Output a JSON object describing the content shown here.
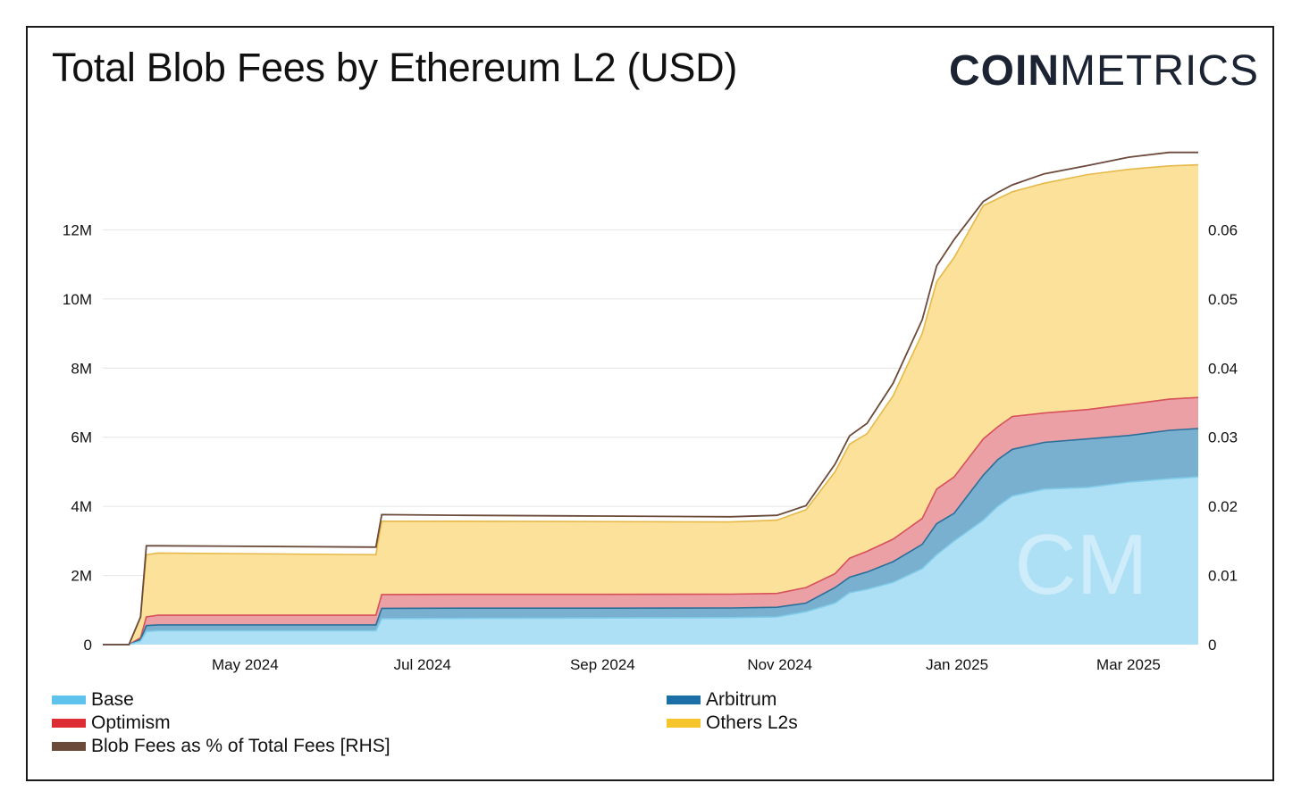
{
  "header": {
    "title": "Total Blob Fees by Ethereum L2 (USD)",
    "logo_bold": "COIN",
    "logo_light": "METRICS"
  },
  "colors": {
    "base": "#aee0f5",
    "arbitrum": "#7ab0cf",
    "optimism": "#eba0a6",
    "others": "#fbe19a",
    "blob_pct": "#6b4a3a",
    "watermark": "#e6f3fa"
  },
  "chart_data": {
    "type": "area",
    "title": "Total Blob Fees by Ethereum L2 (USD)",
    "watermark": "CM",
    "x": [
      "2024-03-13",
      "2024-03-22",
      "2024-03-26",
      "2024-03-28",
      "2024-04-01",
      "2024-06-15",
      "2024-06-17",
      "2024-07-15",
      "2024-09-01",
      "2024-10-15",
      "2024-10-31",
      "2024-11-10",
      "2024-11-20",
      "2024-11-25",
      "2024-12-01",
      "2024-12-10",
      "2024-12-20",
      "2024-12-25",
      "2024-12-31",
      "2025-01-10",
      "2025-01-15",
      "2025-01-20",
      "2025-01-31",
      "2025-02-15",
      "2025-03-01",
      "2025-03-15",
      "2025-03-25"
    ],
    "series": [
      {
        "name": "Base",
        "values": [
          0,
          0,
          100000,
          380000,
          400000,
          400000,
          750000,
          760000,
          770000,
          780000,
          800000,
          950000,
          1200000,
          1500000,
          1600000,
          1800000,
          2200000,
          2600000,
          3000000,
          3600000,
          4000000,
          4300000,
          4500000,
          4550000,
          4700000,
          4800000,
          4850000
        ]
      },
      {
        "name": "Arbitrum",
        "values": [
          0,
          0,
          150000,
          550000,
          570000,
          570000,
          1050000,
          1055000,
          1055000,
          1060000,
          1080000,
          1200000,
          1650000,
          1950000,
          2100000,
          2400000,
          2900000,
          3500000,
          3800000,
          4900000,
          5350000,
          5650000,
          5850000,
          5950000,
          6050000,
          6200000,
          6250000
        ]
      },
      {
        "name": "Optimism",
        "values": [
          0,
          0,
          200000,
          800000,
          850000,
          850000,
          1450000,
          1455000,
          1455000,
          1460000,
          1480000,
          1650000,
          2050000,
          2500000,
          2700000,
          3050000,
          3650000,
          4500000,
          4850000,
          5950000,
          6300000,
          6600000,
          6700000,
          6800000,
          6950000,
          7100000,
          7150000
        ]
      },
      {
        "name": "Others L2s",
        "values": [
          0,
          0,
          800000,
          2600000,
          2650000,
          2600000,
          3570000,
          3570000,
          3560000,
          3550000,
          3600000,
          3900000,
          5000000,
          5800000,
          6100000,
          7200000,
          9000000,
          10500000,
          11200000,
          12700000,
          12900000,
          13100000,
          13350000,
          13600000,
          13750000,
          13850000,
          13880000
        ]
      }
    ],
    "rhs_series": {
      "name": "Blob Fees as % of Total Fees [RHS]",
      "values": [
        0,
        0,
        0.004,
        0.0143,
        0.0143,
        0.0141,
        0.0188,
        0.0187,
        0.0186,
        0.0185,
        0.0187,
        0.0201,
        0.0261,
        0.0302,
        0.032,
        0.0378,
        0.047,
        0.0548,
        0.0586,
        0.0641,
        0.0654,
        0.0665,
        0.0681,
        0.0693,
        0.0705,
        0.0712,
        0.0712
      ]
    },
    "y_ticks": [
      "0",
      "2M",
      "4M",
      "6M",
      "8M",
      "10M",
      "12M"
    ],
    "y_tick_values": [
      0,
      2000000,
      4000000,
      6000000,
      8000000,
      10000000,
      12000000
    ],
    "y2_ticks": [
      "0",
      "0.01",
      "0.02",
      "0.03",
      "0.04",
      "0.05",
      "0.06"
    ],
    "y2_tick_values": [
      0,
      0.01,
      0.02,
      0.03,
      0.04,
      0.05,
      0.06
    ],
    "x_ticks": [
      "May 2024",
      "Jul 2024",
      "Sep 2024",
      "Nov 2024",
      "Jan 2025",
      "Mar 2025"
    ],
    "x_tick_dates": [
      "2024-05-01",
      "2024-07-01",
      "2024-09-01",
      "2024-11-01",
      "2025-01-01",
      "2025-03-01"
    ],
    "xlim": [
      "2024-03-13",
      "2025-03-25"
    ],
    "ylim": [
      0,
      14000000
    ],
    "y2lim": [
      0,
      0.07
    ],
    "grid": true,
    "legend_position": "bottom"
  },
  "legend": {
    "base": "Base",
    "arbitrum": "Arbitrum",
    "optimism": "Optimism",
    "others": "Others L2s",
    "blob_pct": "Blob Fees as % of Total Fees [RHS]"
  }
}
